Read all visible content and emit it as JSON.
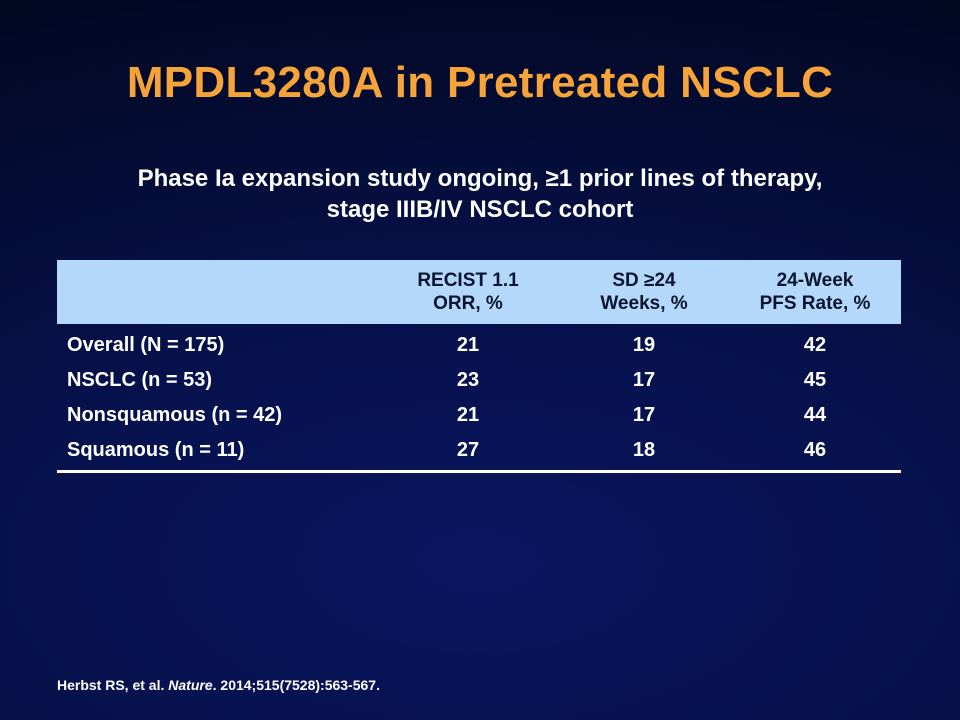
{
  "slide": {
    "title": "MPDL3280A in Pretreated NSCLC",
    "subtitle_lines": [
      "Phase Ia expansion study ongoing, ≥1 prior lines of therapy,",
      "stage IIIB/IV NSCLC cohort"
    ]
  },
  "table": {
    "headers": [
      {
        "lines": [
          "",
          ""
        ]
      },
      {
        "lines": [
          "RECIST 1.1",
          "ORR, %"
        ]
      },
      {
        "lines": [
          "SD ≥24",
          "Weeks, %"
        ]
      },
      {
        "lines": [
          "24-Week",
          "PFS Rate, %"
        ]
      }
    ],
    "rows": [
      {
        "label": "Overall (N = 175)",
        "orr": "21",
        "sd": "19",
        "pfs": "42"
      },
      {
        "label": "NSCLC (n = 53)",
        "orr": "23",
        "sd": "17",
        "pfs": "45"
      },
      {
        "label": "Nonsquamous (n = 42)",
        "orr": "21",
        "sd": "17",
        "pfs": "44"
      },
      {
        "label": "Squamous (n = 11)",
        "orr": "27",
        "sd": "18",
        "pfs": "46"
      }
    ]
  },
  "citation": {
    "authors": "Herbst  RS, et al. ",
    "journal": "Nature",
    "details": ". 2014;515(7528):563-567."
  },
  "colors": {
    "title": "#f6a43a",
    "header_band": "#b3d8f9",
    "background": "#06114a"
  }
}
